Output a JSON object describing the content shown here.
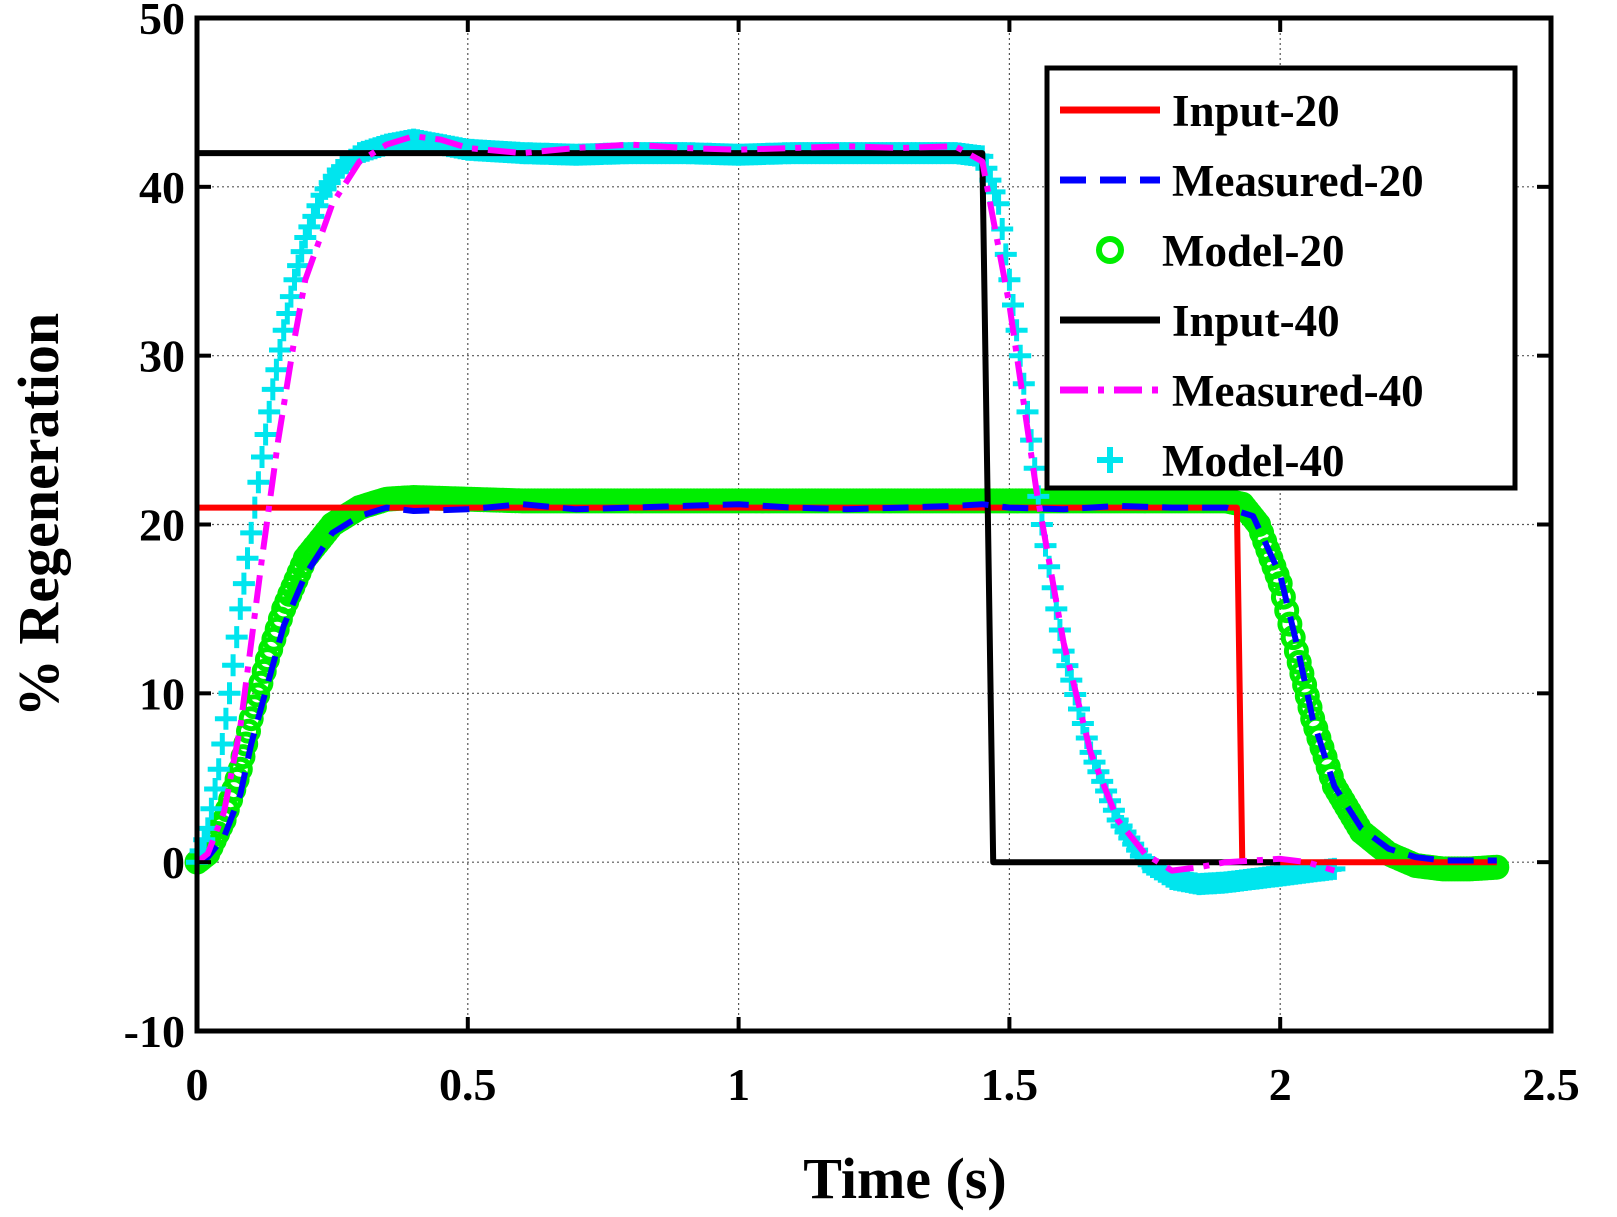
{
  "chart_data": {
    "type": "line",
    "title": "",
    "xlabel": "Time (s)",
    "ylabel": "% Regeneration",
    "xlim": [
      0,
      2.5
    ],
    "ylim": [
      -10,
      50
    ],
    "grid": true,
    "legend_position": "top-right",
    "x_ticks": [
      0,
      0.5,
      1,
      1.5,
      2,
      2.5
    ],
    "x_tick_labels": [
      "0",
      "0.5",
      "1",
      "1.5",
      "2",
      "2.5"
    ],
    "y_ticks": [
      -10,
      0,
      10,
      20,
      30,
      40,
      50
    ],
    "y_tick_labels": [
      "-10",
      "0",
      "10",
      "20",
      "30",
      "40",
      "50"
    ],
    "series": [
      {
        "name": "Input-20",
        "style": "solid",
        "marker": "none",
        "color": "#ff0000",
        "x": [
          0,
          1.92,
          1.93,
          2.4
        ],
        "y": [
          21,
          21,
          0,
          0
        ]
      },
      {
        "name": "Measured-20",
        "style": "dashed",
        "marker": "none",
        "color": "#0000ff",
        "x": [
          0,
          0.02,
          0.05,
          0.08,
          0.1,
          0.13,
          0.16,
          0.2,
          0.25,
          0.3,
          0.35,
          0.4,
          0.5,
          0.6,
          0.7,
          0.8,
          0.9,
          1.0,
          1.1,
          1.2,
          1.3,
          1.4,
          1.45,
          1.5,
          1.6,
          1.7,
          1.8,
          1.9,
          1.95,
          2.0,
          2.03,
          2.06,
          2.1,
          2.15,
          2.2,
          2.25,
          2.3,
          2.35,
          2.4
        ],
        "y": [
          0,
          0.3,
          1.5,
          4,
          7,
          10.5,
          14,
          17,
          19.5,
          20.5,
          21,
          20.8,
          20.9,
          21.2,
          20.9,
          21.0,
          21.1,
          21.2,
          21.0,
          20.9,
          21.0,
          21.1,
          21.2,
          21.0,
          20.9,
          21.1,
          21.0,
          21.0,
          20.5,
          17,
          13,
          8.5,
          4.5,
          2,
          0.8,
          0.3,
          0.1,
          0.1,
          0.1
        ]
      },
      {
        "name": "Model-20",
        "style": "none",
        "marker": "circle",
        "color": "#00ee00",
        "x": [
          0,
          0.02,
          0.05,
          0.08,
          0.1,
          0.13,
          0.16,
          0.2,
          0.25,
          0.3,
          0.35,
          0.4,
          0.5,
          0.6,
          0.7,
          0.8,
          0.9,
          1.0,
          1.1,
          1.2,
          1.3,
          1.4,
          1.5,
          1.6,
          1.7,
          1.8,
          1.9,
          1.93,
          1.96,
          2.0,
          2.03,
          2.06,
          2.1,
          2.15,
          2.2,
          2.25,
          2.3,
          2.35,
          2.4
        ],
        "y": [
          0,
          0.5,
          2.5,
          5.5,
          8.5,
          12,
          15,
          18,
          20,
          21,
          21.5,
          21.6,
          21.5,
          21.4,
          21.4,
          21.4,
          21.4,
          21.4,
          21.4,
          21.4,
          21.4,
          21.4,
          21.4,
          21.4,
          21.4,
          21.4,
          21.4,
          21.2,
          20,
          16.5,
          12.5,
          8.5,
          4.5,
          1.8,
          0.5,
          -0.2,
          -0.4,
          -0.4,
          -0.3
        ]
      },
      {
        "name": "Input-40",
        "style": "solid",
        "marker": "none",
        "color": "#000000",
        "x": [
          0,
          1.45,
          1.47,
          2.0
        ],
        "y": [
          42,
          42,
          0,
          0
        ]
      },
      {
        "name": "Measured-40",
        "style": "dashdot",
        "marker": "none",
        "color": "#ff00ff",
        "x": [
          0,
          0.02,
          0.05,
          0.08,
          0.1,
          0.12,
          0.15,
          0.18,
          0.2,
          0.25,
          0.3,
          0.35,
          0.4,
          0.45,
          0.5,
          0.6,
          0.7,
          0.8,
          0.9,
          1.0,
          1.1,
          1.2,
          1.3,
          1.4,
          1.45,
          1.5,
          1.55,
          1.6,
          1.65,
          1.7,
          1.75,
          1.8,
          1.85,
          1.9,
          1.95,
          2.0,
          2.05,
          2.1
        ],
        "y": [
          0,
          0.5,
          3,
          8,
          13,
          18,
          25,
          31,
          34.5,
          39,
          41.5,
          42.5,
          43,
          42.8,
          42.3,
          42,
          42.3,
          42.5,
          42.3,
          42.2,
          42.3,
          42.4,
          42.3,
          42.4,
          41.5,
          33,
          22,
          13,
          6.5,
          2.5,
          0.5,
          -0.5,
          -0.3,
          0,
          0.1,
          0.2,
          0,
          -0.5
        ]
      },
      {
        "name": "Model-40",
        "style": "none",
        "marker": "plus",
        "color": "#00e5ee",
        "x": [
          0,
          0.02,
          0.04,
          0.06,
          0.08,
          0.1,
          0.12,
          0.14,
          0.16,
          0.18,
          0.2,
          0.23,
          0.26,
          0.3,
          0.35,
          0.4,
          0.45,
          0.5,
          0.6,
          0.7,
          0.8,
          0.9,
          1.0,
          1.1,
          1.2,
          1.3,
          1.4,
          1.45,
          1.48,
          1.52,
          1.56,
          1.6,
          1.65,
          1.7,
          1.75,
          1.8,
          1.85,
          1.9,
          1.95,
          2.0,
          2.05,
          2.1
        ],
        "y": [
          0,
          2,
          5.5,
          10,
          15,
          19.5,
          24,
          28,
          31.5,
          34.5,
          37,
          39.5,
          41,
          42,
          42.5,
          42.8,
          42.5,
          42.2,
          42,
          41.9,
          42,
          42,
          41.9,
          42,
          42,
          42,
          42,
          41.8,
          39,
          30,
          20,
          12.5,
          6.5,
          2.5,
          0,
          -1,
          -1.3,
          -1.2,
          -1.0,
          -0.8,
          -0.6,
          -0.4
        ]
      }
    ]
  }
}
